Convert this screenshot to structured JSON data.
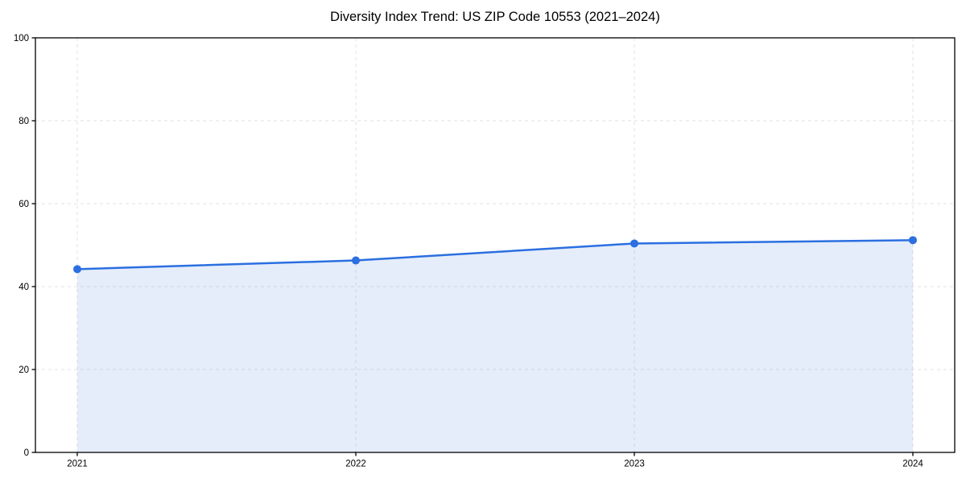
{
  "chart_data": {
    "type": "area",
    "title": "Diversity Index Trend: US ZIP Code 10553 (2021–2024)",
    "x": [
      2021,
      2022,
      2023,
      2024
    ],
    "x_tick_labels": [
      "2021",
      "2022",
      "2023",
      "2024"
    ],
    "series": [
      {
        "name": "Diversity Index",
        "values": [
          44.2,
          46.3,
          50.4,
          51.2
        ]
      }
    ],
    "xlabel": "",
    "ylabel": "",
    "ylim": [
      0,
      100
    ],
    "yticks": [
      0,
      20,
      40,
      60,
      80,
      100
    ],
    "y_tick_labels": [
      "0",
      "20",
      "40",
      "60",
      "80",
      "100"
    ],
    "grid": true,
    "grid_style": "dashed",
    "legend": "none",
    "colors": {
      "line": "#2b6fe0",
      "marker": "#2b6fe0",
      "fill": "#2b6fe0",
      "fill_opacity": 0.12,
      "grid": "#e1e1e1",
      "spine": "#000000",
      "tick_label": "#000000",
      "background": "#ffffff"
    }
  }
}
